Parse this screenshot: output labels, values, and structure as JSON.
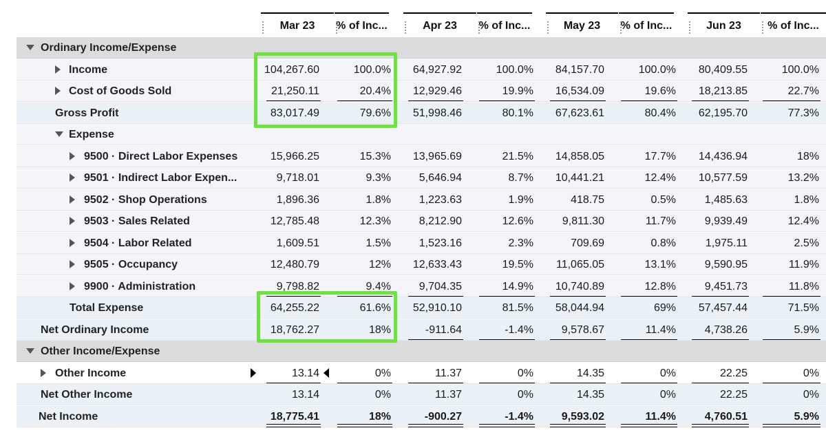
{
  "columns": [
    "Mar 23",
    "% of Inc...",
    "Apr 23",
    "% of Inc...",
    "May 23",
    "% of Inc...",
    "Jun 23",
    "% of Inc..."
  ],
  "rows": [
    {
      "id": "ordinary-income-expense",
      "label": "Ordinary Income/Expense",
      "type": "section",
      "values": []
    },
    {
      "id": "income",
      "label": "Income",
      "type": "normal",
      "values": [
        "104,267.60",
        "100.0%",
        "64,927.92",
        "100.0%",
        "84,157.70",
        "100.0%",
        "80,409.55",
        "100.0%"
      ]
    },
    {
      "id": "cost-of-goods-sold",
      "label": "Cost of Goods Sold",
      "type": "normal",
      "values": [
        "21,250.11",
        "20.4%",
        "12,929.46",
        "19.9%",
        "16,534.09",
        "19.6%",
        "18,213.85",
        "22.7%"
      ]
    },
    {
      "id": "gross-profit",
      "label": "Gross Profit",
      "type": "total",
      "values": [
        "83,017.49",
        "79.6%",
        "51,998.46",
        "80.1%",
        "67,623.61",
        "80.4%",
        "62,195.70",
        "77.3%"
      ]
    },
    {
      "id": "expense",
      "label": "Expense",
      "type": "normal",
      "values": []
    },
    {
      "id": "9500",
      "label": "9500 · Direct Labor Expenses",
      "type": "normal",
      "values": [
        "15,966.25",
        "15.3%",
        "13,965.69",
        "21.5%",
        "14,858.05",
        "17.7%",
        "14,436.94",
        "18%"
      ]
    },
    {
      "id": "9501",
      "label": "9501 · Indirect Labor Expen...",
      "type": "normal",
      "values": [
        "9,718.01",
        "9.3%",
        "5,646.94",
        "8.7%",
        "10,441.21",
        "12.4%",
        "10,577.59",
        "13.2%"
      ]
    },
    {
      "id": "9502",
      "label": "9502 · Shop Operations",
      "type": "normal",
      "values": [
        "1,896.36",
        "1.8%",
        "1,223.63",
        "1.9%",
        "418.75",
        "0.5%",
        "1,485.63",
        "1.8%"
      ]
    },
    {
      "id": "9503",
      "label": "9503 · Sales Related",
      "type": "normal",
      "values": [
        "12,785.48",
        "12.3%",
        "8,212.90",
        "12.6%",
        "9,811.30",
        "11.7%",
        "9,939.49",
        "12.4%"
      ]
    },
    {
      "id": "9504",
      "label": "9504 · Labor Related",
      "type": "normal",
      "values": [
        "1,609.51",
        "1.5%",
        "1,523.16",
        "2.3%",
        "709.69",
        "0.8%",
        "1,975.11",
        "2.5%"
      ]
    },
    {
      "id": "9505",
      "label": "9505 · Occupancy",
      "type": "normal",
      "values": [
        "12,480.79",
        "12%",
        "12,633.43",
        "19.5%",
        "11,065.05",
        "13.1%",
        "9,590.95",
        "11.9%"
      ]
    },
    {
      "id": "9900",
      "label": "9900 · Administration",
      "type": "normal",
      "values": [
        "9,798.82",
        "9.4%",
        "9,704.35",
        "14.9%",
        "10,740.89",
        "12.8%",
        "9,451.73",
        "11.8%"
      ]
    },
    {
      "id": "total-expense",
      "label": "Total Expense",
      "type": "total",
      "values": [
        "64,255.22",
        "61.6%",
        "52,910.10",
        "81.5%",
        "58,044.94",
        "69%",
        "57,457.44",
        "71.5%"
      ]
    },
    {
      "id": "net-ordinary-income",
      "label": "Net Ordinary Income",
      "type": "total",
      "values": [
        "18,762.27",
        "18%",
        "-911.64",
        "-1.4%",
        "9,578.67",
        "11.4%",
        "4,738.26",
        "5.9%"
      ]
    },
    {
      "id": "other-income-expense",
      "label": "Other Income/Expense",
      "type": "section",
      "values": []
    },
    {
      "id": "other-income",
      "label": "Other Income",
      "type": "white",
      "values": [
        "13.14",
        "0%",
        "11.37",
        "0%",
        "14.35",
        "0%",
        "22.25",
        "0%"
      ]
    },
    {
      "id": "net-other-income",
      "label": "Net Other Income",
      "type": "total",
      "values": [
        "13.14",
        "0%",
        "11.37",
        "0%",
        "14.35",
        "0%",
        "22.25",
        "0%"
      ]
    },
    {
      "id": "net-income",
      "label": "Net Income",
      "type": "total",
      "values": [
        "18,775.41",
        "18%",
        "-900.27",
        "-1.4%",
        "9,593.02",
        "11.4%",
        "4,760.51",
        "5.9%"
      ]
    }
  ],
  "colors": {
    "highlight": "#6ee23f",
    "section_bg": "#dcdcdc",
    "row_bg": "#f3f5f8",
    "total_bg": "#eaf1f7"
  }
}
